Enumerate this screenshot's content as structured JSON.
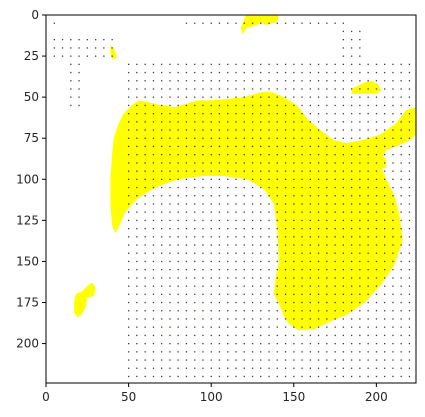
{
  "chart_data": {
    "type": "heatmap",
    "title": "",
    "xlabel": "",
    "ylabel": "",
    "xlim": [
      0,
      224
    ],
    "ylim": [
      224,
      0
    ],
    "y_inverted": true,
    "x_ticks": [
      0,
      50,
      100,
      150,
      200
    ],
    "y_ticks": [
      0,
      25,
      50,
      75,
      100,
      125,
      150,
      175,
      200
    ],
    "grid": false,
    "legend": "none",
    "colors": {
      "mask": "#ffff00",
      "background": "#ffffff",
      "vectors": "#3a3a5a"
    },
    "mask_regions": [
      {
        "name": "main-blob",
        "points": [
          [
            47,
            60
          ],
          [
            52,
            55
          ],
          [
            56,
            52
          ],
          [
            62,
            53
          ],
          [
            70,
            55
          ],
          [
            78,
            56
          ],
          [
            85,
            54
          ],
          [
            92,
            52
          ],
          [
            100,
            52
          ],
          [
            110,
            51
          ],
          [
            120,
            50
          ],
          [
            130,
            47
          ],
          [
            137,
            47
          ],
          [
            144,
            50
          ],
          [
            152,
            55
          ],
          [
            158,
            63
          ],
          [
            166,
            70
          ],
          [
            174,
            76
          ],
          [
            182,
            78
          ],
          [
            192,
            76
          ],
          [
            202,
            73
          ],
          [
            212,
            66
          ],
          [
            218,
            58
          ],
          [
            224,
            56
          ],
          [
            224,
            73
          ],
          [
            219,
            77
          ],
          [
            212,
            80
          ],
          [
            206,
            82
          ],
          [
            202,
            90
          ],
          [
            206,
            100
          ],
          [
            211,
            110
          ],
          [
            214,
            122
          ],
          [
            216,
            137
          ],
          [
            211,
            152
          ],
          [
            203,
            164
          ],
          [
            193,
            175
          ],
          [
            183,
            182
          ],
          [
            171,
            187
          ],
          [
            163,
            191
          ],
          [
            153,
            192
          ],
          [
            147,
            188
          ],
          [
            144,
            183
          ],
          [
            141,
            176
          ],
          [
            138,
            170
          ],
          [
            139,
            160
          ],
          [
            141,
            150
          ],
          [
            140,
            130
          ],
          [
            138,
            115
          ],
          [
            132,
            106
          ],
          [
            122,
            100
          ],
          [
            108,
            98
          ],
          [
            95,
            98
          ],
          [
            80,
            100
          ],
          [
            66,
            105
          ],
          [
            55,
            112
          ],
          [
            48,
            120
          ],
          [
            45,
            127
          ],
          [
            42,
            133
          ],
          [
            40,
            128
          ],
          [
            39,
            115
          ],
          [
            39,
            100
          ],
          [
            40,
            85
          ],
          [
            41,
            75
          ],
          [
            44,
            66
          ]
        ]
      },
      {
        "name": "blob-top",
        "points": [
          [
            121,
            0
          ],
          [
            141,
            0
          ],
          [
            140,
            4
          ],
          [
            134,
            6
          ],
          [
            130,
            5
          ],
          [
            125,
            7
          ],
          [
            121,
            8
          ],
          [
            119,
            12
          ],
          [
            118,
            8
          ]
        ]
      },
      {
        "name": "blob-left-small",
        "points": [
          [
            39,
            18
          ],
          [
            42,
            22
          ],
          [
            43,
            26
          ],
          [
            40,
            27
          ],
          [
            39,
            23
          ]
        ]
      },
      {
        "name": "blob-bottom-left",
        "points": [
          [
            18,
            170
          ],
          [
            22,
            168
          ],
          [
            26,
            164
          ],
          [
            28,
            163
          ],
          [
            30,
            166
          ],
          [
            29,
            171
          ],
          [
            25,
            172
          ],
          [
            24,
            178
          ],
          [
            22,
            182
          ],
          [
            19,
            184
          ],
          [
            17,
            181
          ],
          [
            17,
            175
          ]
        ]
      },
      {
        "name": "blob-right-small",
        "points": [
          [
            185,
            45
          ],
          [
            189,
            43
          ],
          [
            193,
            41
          ],
          [
            197,
            40
          ],
          [
            201,
            42
          ],
          [
            203,
            46
          ],
          [
            200,
            48
          ],
          [
            195,
            48
          ],
          [
            189,
            48
          ],
          [
            185,
            48
          ]
        ]
      },
      {
        "name": "blob-right-lower",
        "points": [
          [
            185,
            87
          ],
          [
            197,
            85
          ],
          [
            206,
            87
          ],
          [
            206,
            93
          ],
          [
            197,
            94
          ],
          [
            189,
            92
          ]
        ]
      }
    ]
  }
}
